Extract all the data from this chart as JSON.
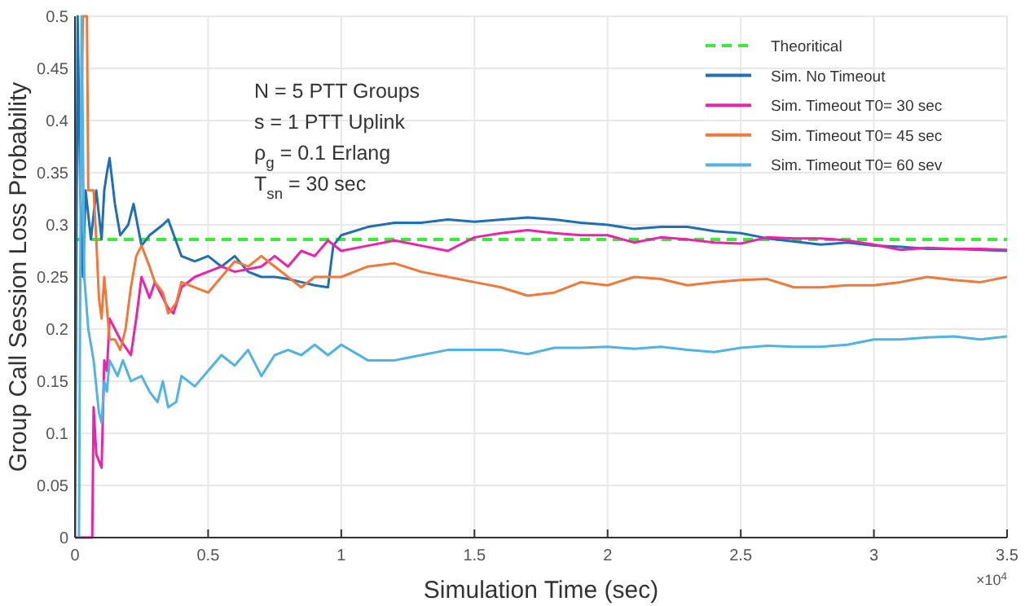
{
  "chart_data": {
    "type": "line",
    "xlabel": "Simulation Time (sec)",
    "ylabel": "Group Call Session Loss Probability",
    "xlim": [
      0,
      3.5
    ],
    "xticks": [
      0,
      0.5,
      1,
      1.5,
      2,
      2.5,
      3,
      3.5
    ],
    "ylim": [
      0,
      0.5
    ],
    "yticks": [
      0,
      0.05,
      0.1,
      0.15,
      0.2,
      0.25,
      0.3,
      0.35,
      0.4,
      0.45,
      0.5
    ],
    "grid": true,
    "legend": "top right",
    "annotations": [
      "N = 5 PTT Groups",
      "s = 1 PTT Uplink",
      "ρ$_{g}$ = 0.1 Erlang",
      "T$_{sn}$ = 30 sec",
      "×10$^{4}$"
    ],
    "series": [
      {
        "name": "Theoritical",
        "color": "#33ee33",
        "line_style": "dashed",
        "x": [
          0,
          3.5
        ],
        "values": [
          0.286,
          0.286
        ]
      },
      {
        "name": "Sim. No Timeout",
        "color": "#1f6fb4",
        "x": [
          0,
          0.01,
          0.02,
          0.03,
          0.04,
          0.06,
          0.08,
          0.1,
          0.11,
          0.12,
          0.13,
          0.15,
          0.17,
          0.2,
          0.22,
          0.25,
          0.28,
          0.33,
          0.35,
          0.4,
          0.45,
          0.5,
          0.55,
          0.6,
          0.65,
          0.7,
          0.75,
          0.8,
          0.85,
          0.9,
          0.95,
          0.97,
          1,
          1.1,
          1.2,
          1.3,
          1.4,
          1.5,
          1.7,
          1.8,
          1.9,
          2,
          2.1,
          2.2,
          2.3,
          2.4,
          2.5,
          2.6,
          2.7,
          2.8,
          2.9,
          3,
          3.1,
          3.2,
          3.3,
          3.4,
          3.5
        ],
        "values": [
          0,
          0.5,
          0.333,
          0.25,
          0.333,
          0.286,
          0.333,
          0.286,
          0.333,
          0.35,
          0.364,
          0.32,
          0.29,
          0.3,
          0.32,
          0.28,
          0.29,
          0.3,
          0.305,
          0.27,
          0.265,
          0.27,
          0.26,
          0.27,
          0.255,
          0.25,
          0.25,
          0.248,
          0.245,
          0.242,
          0.24,
          0.28,
          0.29,
          0.298,
          0.302,
          0.302,
          0.305,
          0.303,
          0.307,
          0.305,
          0.302,
          0.3,
          0.296,
          0.298,
          0.298,
          0.294,
          0.292,
          0.287,
          0.284,
          0.281,
          0.283,
          0.28,
          0.279,
          0.277,
          0.277,
          0.276,
          0.275
        ]
      },
      {
        "name": "Sim. Timeout T0= 30 sec",
        "color": "#ee22aa",
        "x": [
          0,
          0.065,
          0.07,
          0.08,
          0.1,
          0.11,
          0.12,
          0.13,
          0.15,
          0.17,
          0.21,
          0.23,
          0.25,
          0.28,
          0.3,
          0.35,
          0.37,
          0.4,
          0.45,
          0.55,
          0.6,
          0.7,
          0.75,
          0.8,
          0.85,
          0.9,
          0.95,
          1,
          1.1,
          1.2,
          1.3,
          1.4,
          1.5,
          1.6,
          1.7,
          1.8,
          1.9,
          2,
          2.1,
          2.2,
          2.3,
          2.4,
          2.5,
          2.6,
          2.7,
          2.8,
          2.9,
          3,
          3.1,
          3.2,
          3.3,
          3.4,
          3.5
        ],
        "values": [
          0,
          0,
          0.125,
          0.08,
          0.067,
          0.17,
          0.16,
          0.21,
          0.2,
          0.19,
          0.175,
          0.21,
          0.25,
          0.23,
          0.245,
          0.22,
          0.215,
          0.24,
          0.25,
          0.26,
          0.255,
          0.26,
          0.27,
          0.26,
          0.275,
          0.27,
          0.285,
          0.275,
          0.28,
          0.285,
          0.28,
          0.275,
          0.288,
          0.292,
          0.295,
          0.292,
          0.29,
          0.29,
          0.283,
          0.288,
          0.286,
          0.283,
          0.282,
          0.288,
          0.287,
          0.287,
          0.285,
          0.281,
          0.276,
          0.278,
          0.277,
          0.277,
          0.276
        ]
      },
      {
        "name": "Sim. Timeout T0= 45 sec",
        "color": "#f07838",
        "x": [
          0.02,
          0.03,
          0.045,
          0.05,
          0.07,
          0.08,
          0.09,
          0.1,
          0.11,
          0.12,
          0.13,
          0.15,
          0.17,
          0.19,
          0.21,
          0.23,
          0.25,
          0.28,
          0.3,
          0.33,
          0.35,
          0.38,
          0.4,
          0.45,
          0.5,
          0.55,
          0.6,
          0.65,
          0.7,
          0.75,
          0.8,
          0.85,
          0.9,
          1,
          1.1,
          1.2,
          1.3,
          1.4,
          1.5,
          1.6,
          1.7,
          1.8,
          1.9,
          2,
          2.1,
          2.2,
          2.3,
          2.4,
          2.5,
          2.6,
          2.7,
          2.8,
          2.9,
          3,
          3.1,
          3.2,
          3.3,
          3.4,
          3.5
        ],
        "values": [
          0.333,
          0.5,
          0.5,
          0.333,
          0.333,
          0.286,
          0.23,
          0.21,
          0.25,
          0.22,
          0.19,
          0.19,
          0.18,
          0.2,
          0.24,
          0.27,
          0.28,
          0.26,
          0.245,
          0.235,
          0.215,
          0.225,
          0.245,
          0.24,
          0.235,
          0.25,
          0.265,
          0.26,
          0.27,
          0.26,
          0.25,
          0.24,
          0.25,
          0.25,
          0.26,
          0.263,
          0.255,
          0.25,
          0.245,
          0.24,
          0.232,
          0.235,
          0.245,
          0.242,
          0.25,
          0.248,
          0.242,
          0.245,
          0.247,
          0.248,
          0.24,
          0.24,
          0.242,
          0.242,
          0.245,
          0.25,
          0.247,
          0.245,
          0.25
        ]
      },
      {
        "name": "Sim. Timeout T0= 60 sev",
        "color": "#4fb4e4",
        "x": [
          0.015,
          0.025,
          0.035,
          0.05,
          0.07,
          0.09,
          0.1,
          0.11,
          0.12,
          0.13,
          0.16,
          0.18,
          0.21,
          0.25,
          0.28,
          0.31,
          0.33,
          0.35,
          0.38,
          0.4,
          0.45,
          0.5,
          0.55,
          0.6,
          0.65,
          0.7,
          0.75,
          0.8,
          0.85,
          0.9,
          0.95,
          1,
          1.1,
          1.2,
          1.3,
          1.4,
          1.5,
          1.6,
          1.7,
          1.8,
          1.9,
          2,
          2.1,
          2.2,
          2.3,
          2.4,
          2.5,
          2.6,
          2.7,
          2.8,
          2.9,
          3,
          3.1,
          3.2,
          3.3,
          3.4,
          3.5
        ],
        "values": [
          0,
          0.5,
          0.25,
          0.2,
          0.17,
          0.12,
          0.11,
          0.15,
          0.14,
          0.17,
          0.155,
          0.17,
          0.15,
          0.155,
          0.14,
          0.13,
          0.15,
          0.125,
          0.13,
          0.155,
          0.145,
          0.16,
          0.175,
          0.165,
          0.18,
          0.155,
          0.175,
          0.18,
          0.175,
          0.185,
          0.175,
          0.185,
          0.17,
          0.17,
          0.175,
          0.18,
          0.18,
          0.18,
          0.176,
          0.182,
          0.182,
          0.183,
          0.181,
          0.183,
          0.18,
          0.178,
          0.182,
          0.184,
          0.183,
          0.183,
          0.185,
          0.19,
          0.19,
          0.192,
          0.193,
          0.19,
          0.193
        ]
      }
    ]
  }
}
